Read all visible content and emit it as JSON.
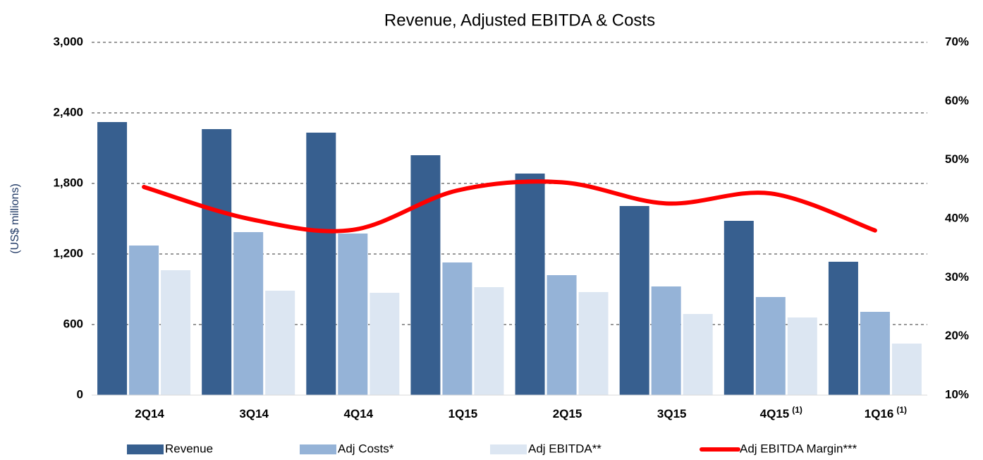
{
  "chart_data": {
    "type": "bar_line",
    "title": "Revenue, Adjusted EBITDA & Costs",
    "y_label": "(US$ millions)",
    "categories": [
      "2Q14",
      "3Q14",
      "4Q14",
      "1Q15",
      "2Q15",
      "3Q15",
      "4Q15",
      "1Q16"
    ],
    "category_notes": [
      null,
      null,
      null,
      null,
      null,
      null,
      "(1)",
      "(1)"
    ],
    "series": [
      {
        "name": "Revenue",
        "color": "#375f8f",
        "type": "bar",
        "values": [
          2322,
          2262,
          2232,
          2040,
          1884,
          1608,
          1482,
          1134
        ]
      },
      {
        "name": "Adj Costs*",
        "color": "#95b3d7",
        "type": "bar",
        "values": [
          1272,
          1386,
          1374,
          1128,
          1020,
          924,
          834,
          708
        ]
      },
      {
        "name": "Adj EBITDA**",
        "color": "#dce6f2",
        "type": "bar",
        "values": [
          1062,
          888,
          870,
          918,
          876,
          690,
          660,
          438
        ]
      },
      {
        "name": "Adj EBITDA Margin***",
        "color": "#ff0000",
        "type": "line",
        "axis": "y2",
        "values": [
          45.4,
          40.0,
          38.1,
          44.8,
          46.2,
          42.6,
          44.3,
          38.0
        ]
      }
    ],
    "ylim": [
      0,
      3000
    ],
    "yticks": [
      0,
      {
        "value": 600,
        "label": "600"
      },
      {
        "value": 1200,
        "label": "1,200"
      },
      {
        "value": 1800,
        "label": "1,800"
      },
      {
        "value": 2400,
        "label": "2,400"
      },
      {
        "value": 3000,
        "label": "3,000"
      }
    ],
    "y2lim": [
      10,
      70
    ],
    "y2ticks": [
      {
        "value": 10,
        "label": "10%"
      },
      {
        "value": 20,
        "label": "20%"
      },
      {
        "value": 30,
        "label": "30%"
      },
      {
        "value": 40,
        "label": "40%"
      },
      {
        "value": 50,
        "label": "50%"
      },
      {
        "value": 60,
        "label": "60%"
      },
      {
        "value": 70,
        "label": "70%"
      }
    ],
    "grid": true,
    "legend": "bottom"
  }
}
